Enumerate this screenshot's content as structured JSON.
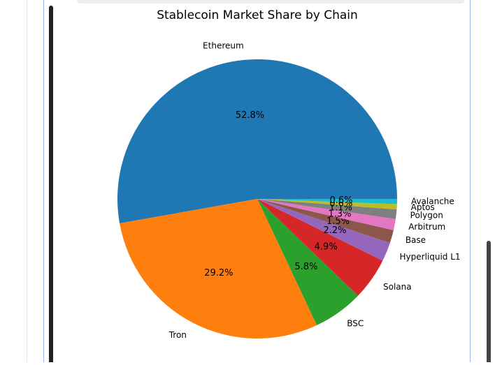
{
  "chart_data": {
    "type": "pie",
    "title": "Stablecoin Market Share by Chain",
    "categories": [
      "Ethereum",
      "Tron",
      "BSC",
      "Solana",
      "Hyperliquid L1",
      "Base",
      "Arbitrum",
      "Polygon",
      "Aptos",
      "Avalanche"
    ],
    "values": [
      52.8,
      29.2,
      5.8,
      4.9,
      2.2,
      1.5,
      1.3,
      1.1,
      0.6,
      0.6
    ],
    "value_labels": [
      "52.8%",
      "29.2%",
      "5.8%",
      "4.9%",
      "2.2%",
      "1.5%",
      "1.3%",
      "1.1%",
      "0.6%",
      "0.6%"
    ],
    "colors": [
      "#1f77b4",
      "#ff7f0e",
      "#2ca02c",
      "#d62728",
      "#9467bd",
      "#8c564b",
      "#e377c2",
      "#7f7f7f",
      "#bcbd22",
      "#17becf"
    ]
  }
}
